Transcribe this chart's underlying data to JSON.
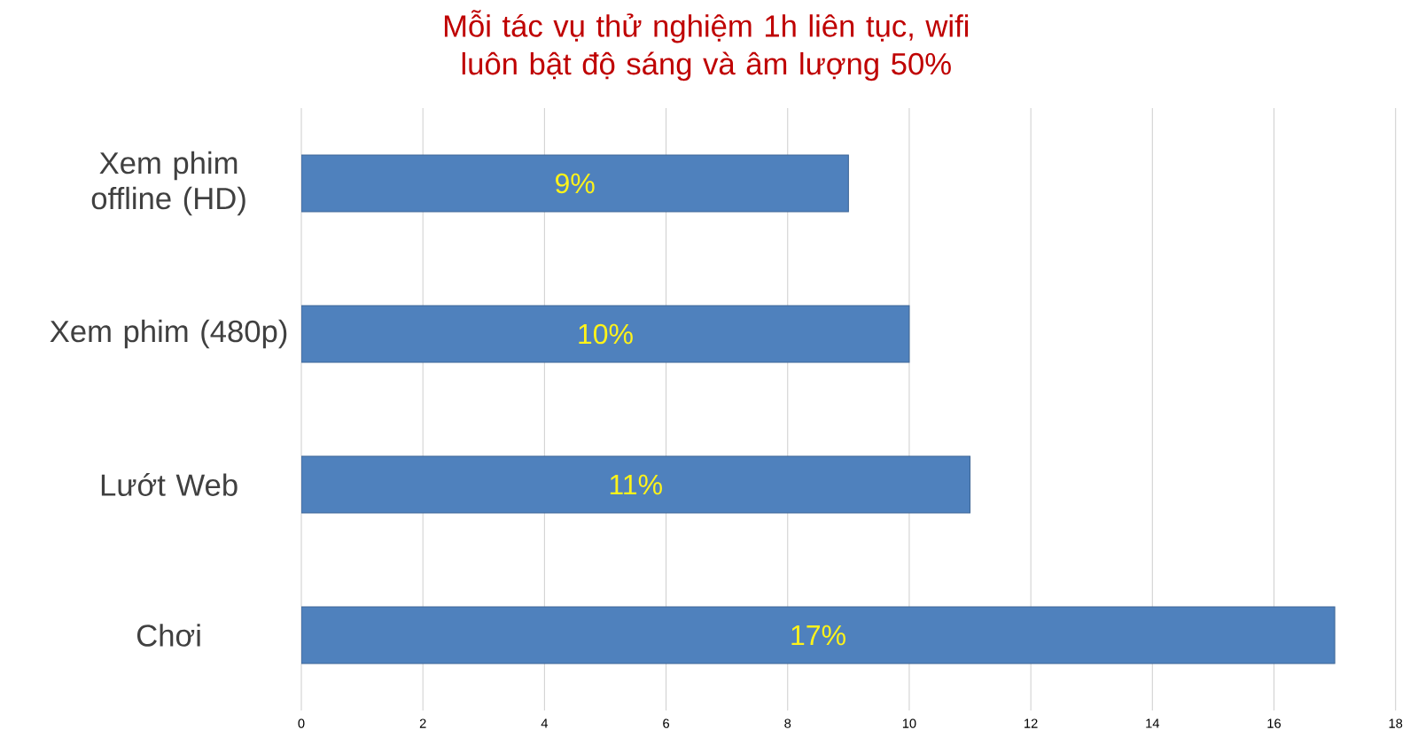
{
  "chart_data": {
    "type": "bar",
    "orientation": "horizontal",
    "title": "Mỗi tác vụ thử nghiệm 1h liên tục, wifi luôn bật độ sáng và âm lượng 50%",
    "categories": [
      "Xem phim offline (HD)",
      "Xem phim (480p)",
      "Lướt Web",
      "Chơi"
    ],
    "values": [
      9,
      10,
      11,
      17
    ],
    "value_labels": [
      "9%",
      "10%",
      "11%",
      "17%"
    ],
    "color": "#4f81bd",
    "xlim": [
      0,
      18
    ],
    "xticks": [
      0,
      2,
      4,
      6,
      8,
      10,
      12,
      14,
      16,
      18
    ],
    "grid": "x"
  }
}
